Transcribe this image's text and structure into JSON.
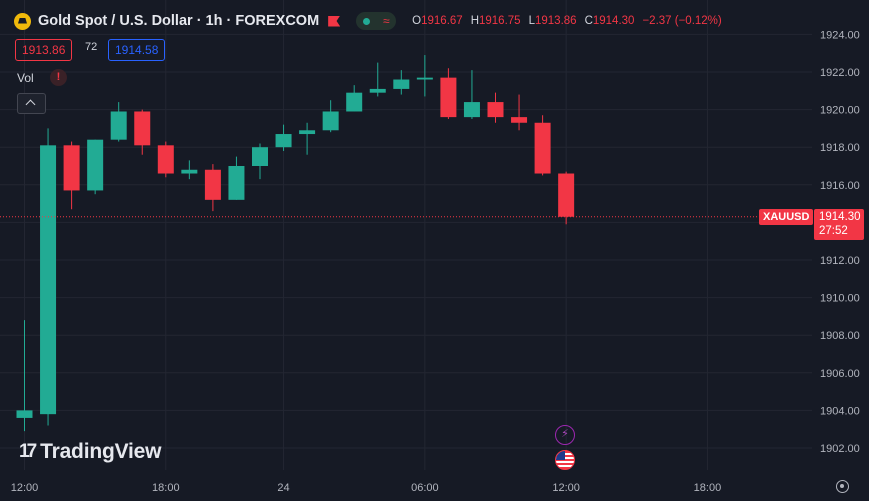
{
  "header": {
    "title": "Gold Spot / U.S. Dollar · 1h · FOREXCOM",
    "ohlc": [
      {
        "k": "O",
        "v": "1916.67"
      },
      {
        "k": "H",
        "v": "1916.75"
      },
      {
        "k": "L",
        "v": "1913.86"
      },
      {
        "k": "C",
        "v": "1914.30"
      }
    ],
    "change": "−2.37 (−0.12%)",
    "status_icon": "market-open-dot",
    "wave_icon": "wave-icon"
  },
  "trade": {
    "sell": "1913.86",
    "spread": "72",
    "buy": "1914.58"
  },
  "volume": {
    "label": "Vol",
    "warning": "!"
  },
  "price_tag": {
    "symbol": "XAUUSD",
    "price": "1914.30",
    "countdown": "27:52"
  },
  "logo": "TradingView",
  "colors": {
    "up": "#22ab94",
    "down": "#f23645",
    "grid": "#232632",
    "text": "#b2b5be",
    "bg": "#161a25"
  },
  "chart_data": {
    "type": "candlestick",
    "ylim": [
      1901,
      1925
    ],
    "yticks": [
      "1902.00",
      "1904.00",
      "1906.00",
      "1908.00",
      "1910.00",
      "1912.00",
      "1914.00",
      "1916.00",
      "1918.00",
      "1920.00",
      "1922.00",
      "1924.00"
    ],
    "xticks": [
      {
        "label": "12:00",
        "index": 0
      },
      {
        "label": "18:00",
        "index": 6
      },
      {
        "label": "24",
        "index": 11
      },
      {
        "label": "06:00",
        "index": 17
      },
      {
        "label": "12:00",
        "index": 23
      },
      {
        "label": "18:00",
        "index": 29
      }
    ],
    "last_price": 1914.3,
    "candles": [
      {
        "o": 1903.6,
        "h": 1908.8,
        "l": 1902.9,
        "c": 1904.0
      },
      {
        "o": 1903.8,
        "h": 1919.0,
        "l": 1903.2,
        "c": 1918.1
      },
      {
        "o": 1918.1,
        "h": 1918.3,
        "l": 1914.7,
        "c": 1915.7
      },
      {
        "o": 1915.7,
        "h": 1918.4,
        "l": 1915.5,
        "c": 1918.4
      },
      {
        "o": 1918.4,
        "h": 1920.4,
        "l": 1918.3,
        "c": 1919.9
      },
      {
        "o": 1919.9,
        "h": 1920.0,
        "l": 1917.6,
        "c": 1918.1
      },
      {
        "o": 1918.1,
        "h": 1918.3,
        "l": 1916.4,
        "c": 1916.6
      },
      {
        "o": 1916.6,
        "h": 1917.3,
        "l": 1916.3,
        "c": 1916.8
      },
      {
        "o": 1916.8,
        "h": 1917.1,
        "l": 1914.6,
        "c": 1915.2
      },
      {
        "o": 1915.2,
        "h": 1917.5,
        "l": 1915.2,
        "c": 1917.0
      },
      {
        "o": 1917.0,
        "h": 1918.2,
        "l": 1916.3,
        "c": 1918.0
      },
      {
        "o": 1918.0,
        "h": 1919.2,
        "l": 1917.8,
        "c": 1918.7
      },
      {
        "o": 1918.7,
        "h": 1919.3,
        "l": 1917.6,
        "c": 1918.9
      },
      {
        "o": 1918.9,
        "h": 1920.5,
        "l": 1918.8,
        "c": 1919.9
      },
      {
        "o": 1919.9,
        "h": 1921.3,
        "l": 1919.9,
        "c": 1920.9
      },
      {
        "o": 1920.9,
        "h": 1922.5,
        "l": 1920.7,
        "c": 1921.1
      },
      {
        "o": 1921.1,
        "h": 1922.1,
        "l": 1920.8,
        "c": 1921.6
      },
      {
        "o": 1921.6,
        "h": 1922.9,
        "l": 1920.7,
        "c": 1921.7
      },
      {
        "o": 1921.7,
        "h": 1922.2,
        "l": 1919.5,
        "c": 1919.6
      },
      {
        "o": 1919.6,
        "h": 1922.1,
        "l": 1919.5,
        "c": 1920.4
      },
      {
        "o": 1920.4,
        "h": 1920.9,
        "l": 1919.3,
        "c": 1919.6
      },
      {
        "o": 1919.6,
        "h": 1920.8,
        "l": 1918.9,
        "c": 1919.3
      },
      {
        "o": 1919.3,
        "h": 1919.7,
        "l": 1916.5,
        "c": 1916.6
      },
      {
        "o": 1916.6,
        "h": 1916.7,
        "l": 1913.9,
        "c": 1914.3
      }
    ]
  }
}
